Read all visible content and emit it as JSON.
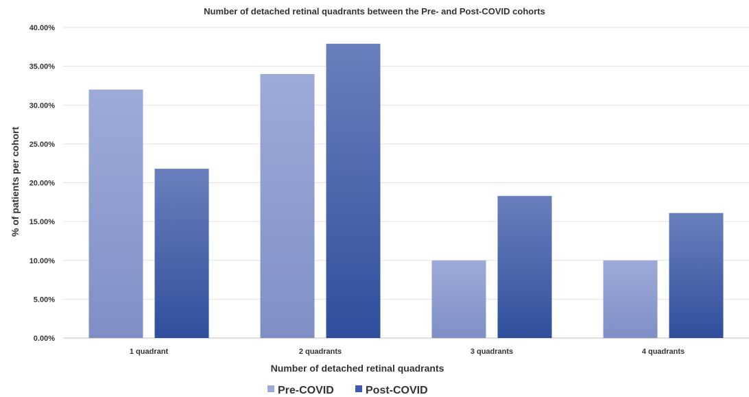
{
  "chart_data": {
    "type": "bar",
    "title": "Number of detached retinal quadrants between the Pre- and Post-COVID cohorts",
    "xlabel": "Number of detached retinal quadrants",
    "ylabel": "% of patients per cohort",
    "categories": [
      "1 quadrant",
      "2 quadrants",
      "3 quadrants",
      "4 quadrants"
    ],
    "series": [
      {
        "name": "Pre-COVID",
        "values": [
          32.0,
          34.0,
          10.0,
          10.0
        ],
        "color_top": "#9eaad8",
        "color_bottom": "#7f8fc6"
      },
      {
        "name": "Post-COVID",
        "values": [
          21.8,
          37.9,
          18.3,
          16.1
        ],
        "color_top": "#6a7fbd",
        "color_bottom": "#2f4f9c"
      }
    ],
    "ylim": [
      0,
      40
    ],
    "yticks": [
      "0.00%",
      "5.00%",
      "10.00%",
      "15.00%",
      "20.00%",
      "25.00%",
      "30.00%",
      "35.00%",
      "40.00%"
    ],
    "ytick_values": [
      0,
      5,
      10,
      15,
      20,
      25,
      30,
      35,
      40
    ],
    "grid": true,
    "legend_position": "bottom"
  }
}
